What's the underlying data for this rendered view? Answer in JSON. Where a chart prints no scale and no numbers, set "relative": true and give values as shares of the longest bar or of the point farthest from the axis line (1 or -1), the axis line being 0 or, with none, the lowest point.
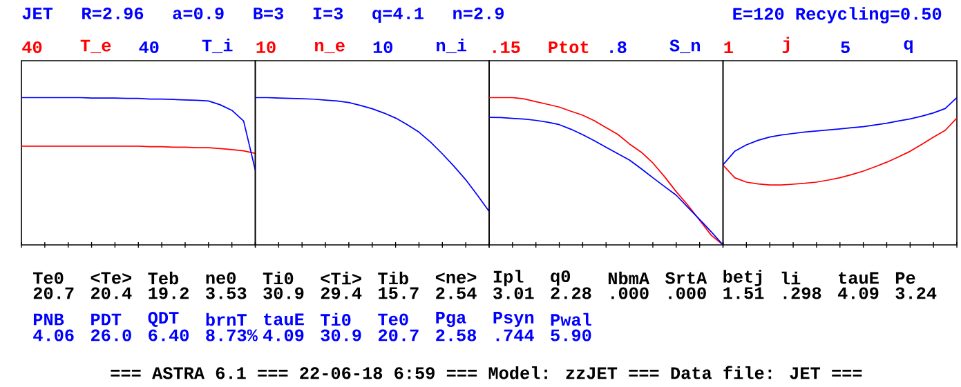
{
  "chart_data": [
    {
      "type": "other",
      "color": "#0000ff",
      "annotations": [
        "JET",
        "R=2.96",
        "a=0.9",
        "B=3",
        "I=3",
        "q=4.1",
        "n=2.9"
      ]
    },
    {
      "type": "other",
      "color": "#0000ff",
      "annotations": [
        "E=120",
        "Recycling=0.50"
      ]
    },
    {
      "type": "line",
      "relative": true,
      "tick_labels": false,
      "annotations": [
        "40",
        "40"
      ],
      "categories": [
        null,
        null,
        null,
        null,
        null,
        null,
        null,
        null,
        null,
        null,
        null,
        null,
        null,
        null,
        null,
        null,
        null,
        null,
        null,
        null,
        null
      ],
      "series": [
        {
          "name": "T_e",
          "color": "#ff0000",
          "values": [
            0.67,
            0.67,
            0.67,
            0.67,
            0.67,
            0.67,
            0.67,
            0.67,
            0.67,
            0.67,
            0.67,
            0.667,
            0.667,
            0.663,
            0.663,
            0.66,
            0.66,
            0.654,
            0.647,
            0.638,
            0.621
          ]
        },
        {
          "name": "T_i",
          "color": "#0000ff",
          "values": [
            1,
            1,
            1,
            1,
            1,
            1,
            0.997,
            0.997,
            0.997,
            0.994,
            0.994,
            0.99,
            0.99,
            0.987,
            0.984,
            0.981,
            0.977,
            0.951,
            0.913,
            0.841,
            0.508
          ]
        }
      ]
    },
    {
      "type": "line",
      "relative": true,
      "tick_labels": false,
      "annotations": [
        "10",
        "10"
      ],
      "categories": [
        null,
        null,
        null,
        null,
        null,
        null,
        null,
        null,
        null,
        null,
        null,
        null,
        null,
        null,
        null,
        null,
        null,
        null,
        null,
        null,
        null
      ],
      "series": [
        {
          "name": "n_e",
          "color": "#ff0000",
          "values": [
            null,
            null,
            null,
            null,
            null,
            null,
            null,
            null,
            null,
            null,
            null,
            null,
            null,
            null,
            null,
            null,
            null,
            null,
            null,
            null,
            null
          ]
        },
        {
          "name": "n_i",
          "color": "#0000ff",
          "values": [
            1,
            1,
            0.997,
            0.994,
            0.992,
            0.989,
            0.983,
            0.977,
            0.966,
            0.946,
            0.924,
            0.895,
            0.861,
            0.816,
            0.765,
            0.697,
            0.618,
            0.533,
            0.442,
            0.337,
            0.227
          ]
        }
      ]
    },
    {
      "type": "line",
      "relative": true,
      "tick_labels": false,
      "annotations": [
        ".15",
        ".8"
      ],
      "categories": [
        null,
        null,
        null,
        null,
        null,
        null,
        null,
        null,
        null,
        null,
        null,
        null,
        null,
        null,
        null,
        null,
        null,
        null,
        null,
        null,
        null
      ],
      "series": [
        {
          "name": "Ptot",
          "color": "#ff0000",
          "values": [
            1,
            1,
            1,
            0.991,
            0.972,
            0.954,
            0.935,
            0.907,
            0.88,
            0.843,
            0.796,
            0.75,
            0.685,
            0.63,
            0.556,
            0.463,
            0.361,
            0.269,
            0.167,
            0.065,
            0
          ]
        },
        {
          "name": "S_n",
          "color": "#0000ff",
          "values": [
            0.866,
            0.864,
            0.859,
            0.854,
            0.845,
            0.833,
            0.816,
            0.785,
            0.748,
            0.707,
            0.662,
            0.619,
            0.576,
            0.517,
            0.456,
            0.396,
            0.337,
            0.255,
            0.173,
            0.088,
            0
          ]
        }
      ]
    },
    {
      "type": "line",
      "relative": true,
      "tick_labels": false,
      "annotations": [
        "1",
        "5"
      ],
      "categories": [
        null,
        null,
        null,
        null,
        null,
        null,
        null,
        null,
        null,
        null,
        null,
        null,
        null,
        null,
        null,
        null,
        null,
        null,
        null,
        null,
        null
      ],
      "series": [
        {
          "name": "j",
          "color": "#ff0000",
          "values": [
            0.542,
            0.456,
            0.426,
            0.414,
            0.407,
            0.407,
            0.412,
            0.418,
            0.426,
            0.44,
            0.456,
            0.477,
            0.501,
            0.53,
            0.561,
            0.597,
            0.635,
            0.682,
            0.732,
            0.777,
            0.861
          ]
        },
        {
          "name": "q",
          "color": "#0000ff",
          "values": [
            0.543,
            0.635,
            0.679,
            0.71,
            0.732,
            0.746,
            0.756,
            0.766,
            0.773,
            0.78,
            0.787,
            0.795,
            0.802,
            0.814,
            0.826,
            0.841,
            0.855,
            0.874,
            0.896,
            0.925,
            1
          ]
        }
      ]
    },
    {
      "type": "other",
      "color": "#000000",
      "annotations": [
        "Te0",
        "<Te>",
        "Teb",
        "ne0",
        "Ti0",
        "<Ti>",
        "Tib",
        "<ne>",
        "Ipl",
        "q0",
        "NbmA",
        "SrtA",
        "betj",
        "li",
        "tauE",
        "Pe",
        "20.7",
        "20.4",
        "19.2",
        "3.53",
        "30.9",
        "29.4",
        "15.7",
        "2.54",
        "3.01",
        "2.28",
        ".000",
        ".000",
        "1.51",
        ".298",
        "4.09",
        "3.24"
      ]
    },
    {
      "type": "other",
      "color": "#0000ff",
      "annotations": [
        "PNB",
        "PDT",
        "QDT",
        "brnT",
        "tauE",
        "Ti0",
        "Te0",
        "Pga",
        "Psyn",
        "Pwal",
        "4.06",
        "26.0",
        "6.40",
        "8.73%",
        "4.09",
        "30.9",
        "20.7",
        "2.58",
        ".744",
        "5.90"
      ]
    },
    {
      "type": "other",
      "color": "#000000",
      "annotations": [
        "=== ASTRA 6.1 === 22-06-18  6:59 === Model: zzJET === Data file: JET ==="
      ]
    }
  ]
}
